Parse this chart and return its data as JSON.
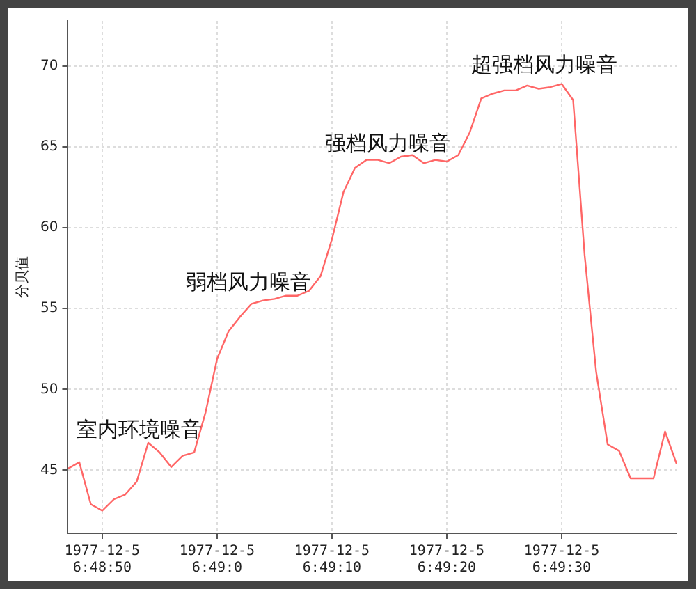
{
  "chart_data": {
    "type": "line",
    "ylabel": "分贝值",
    "x": [
      "1977-12-05T06:48:47",
      "1977-12-05T06:48:48",
      "1977-12-05T06:48:49",
      "1977-12-05T06:48:50",
      "1977-12-05T06:48:51",
      "1977-12-05T06:48:52",
      "1977-12-05T06:48:53",
      "1977-12-05T06:48:54",
      "1977-12-05T06:48:55",
      "1977-12-05T06:48:56",
      "1977-12-05T06:48:57",
      "1977-12-05T06:48:58",
      "1977-12-05T06:48:59",
      "1977-12-05T06:49:00",
      "1977-12-05T06:49:01",
      "1977-12-05T06:49:02",
      "1977-12-05T06:49:03",
      "1977-12-05T06:49:04",
      "1977-12-05T06:49:05",
      "1977-12-05T06:49:06",
      "1977-12-05T06:49:07",
      "1977-12-05T06:49:08",
      "1977-12-05T06:49:09",
      "1977-12-05T06:49:10",
      "1977-12-05T06:49:11",
      "1977-12-05T06:49:12",
      "1977-12-05T06:49:13",
      "1977-12-05T06:49:14",
      "1977-12-05T06:49:15",
      "1977-12-05T06:49:16",
      "1977-12-05T06:49:17",
      "1977-12-05T06:49:18",
      "1977-12-05T06:49:19",
      "1977-12-05T06:49:20",
      "1977-12-05T06:49:21",
      "1977-12-05T06:49:22",
      "1977-12-05T06:49:23",
      "1977-12-05T06:49:24",
      "1977-12-05T06:49:25",
      "1977-12-05T06:49:26",
      "1977-12-05T06:49:27",
      "1977-12-05T06:49:28",
      "1977-12-05T06:49:29",
      "1977-12-05T06:49:30",
      "1977-12-05T06:49:31",
      "1977-12-05T06:49:32",
      "1977-12-05T06:49:33",
      "1977-12-05T06:49:34",
      "1977-12-05T06:49:35",
      "1977-12-05T06:49:36",
      "1977-12-05T06:49:37",
      "1977-12-05T06:49:38",
      "1977-12-05T06:49:39",
      "1977-12-05T06:49:40"
    ],
    "series": [
      {
        "color": "#ff6666",
        "values": [
          45.1,
          45.5,
          42.9,
          42.5,
          43.2,
          43.5,
          44.3,
          46.7,
          46.1,
          45.2,
          45.9,
          46.1,
          48.6,
          51.9,
          53.6,
          54.5,
          55.3,
          55.5,
          55.6,
          55.8,
          55.8,
          56.1,
          57.0,
          59.3,
          62.2,
          63.7,
          64.2,
          64.2,
          64.0,
          64.4,
          64.5,
          64.0,
          64.2,
          64.1,
          64.5,
          65.9,
          68.0,
          68.3,
          68.5,
          68.5,
          68.8,
          68.6,
          68.7,
          68.9,
          67.9,
          58.3,
          51.1,
          46.6,
          46.2,
          44.5,
          44.5,
          44.5,
          47.4,
          45.4
        ]
      }
    ],
    "xlim": [
      "1977-12-05T06:48:47",
      "1977-12-05T06:49:40"
    ],
    "xticks": [
      {
        "value": "1977-12-05T06:48:50",
        "label": "1977-12-5 6:48:50"
      },
      {
        "value": "1977-12-05T06:49:00",
        "label": "1977-12-5 6:49:0"
      },
      {
        "value": "1977-12-05T06:49:10",
        "label": "1977-12-5 6:49:10"
      },
      {
        "value": "1977-12-05T06:49:20",
        "label": "1977-12-5 6:49:20"
      },
      {
        "value": "1977-12-05T06:49:30",
        "label": "1977-12-5 6:49:30"
      }
    ],
    "ylim": [
      41.1,
      72.8
    ],
    "yticks": [
      45,
      50,
      55,
      60,
      65,
      70
    ],
    "grid": true,
    "legend": false,
    "marker": "none",
    "line_style": "solid",
    "annotations": [
      "室内环境噪音",
      "弱档风力噪音",
      "强档风力噪音",
      "超强档风力噪音"
    ]
  }
}
